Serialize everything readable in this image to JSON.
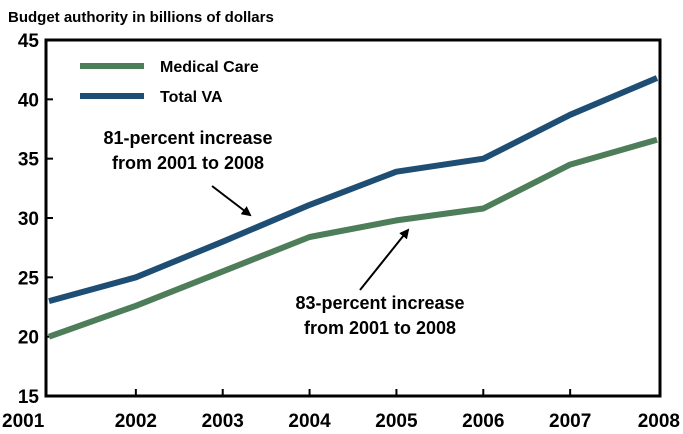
{
  "chart_data": {
    "type": "line",
    "ylabel": "Budget authority in billions of dollars",
    "xlabel": "",
    "x": [
      "2001",
      "2002",
      "2003",
      "2004",
      "2005",
      "2006",
      "2007",
      "2008"
    ],
    "ylim": [
      15,
      45
    ],
    "yticks": [
      "15",
      "20",
      "25",
      "30",
      "35",
      "40",
      "45"
    ],
    "grid": false,
    "legend_position": "top-left",
    "series": [
      {
        "name": "Medical Care",
        "color": "#4e7d5a",
        "values": [
          20.0,
          22.6,
          25.5,
          28.4,
          29.8,
          30.8,
          34.5,
          36.6
        ]
      },
      {
        "name": "Total VA",
        "color": "#1e4e73",
        "values": [
          23.0,
          25.0,
          28.0,
          31.1,
          33.9,
          35.0,
          38.7,
          41.8
        ]
      }
    ],
    "annotations": [
      {
        "lines": [
          "81-percent increase",
          "from 2001 to 2008"
        ],
        "target_series": "Total VA"
      },
      {
        "lines": [
          "83-percent increase",
          "from 2001 to 2008"
        ],
        "target_series": "Medical Care"
      }
    ]
  }
}
